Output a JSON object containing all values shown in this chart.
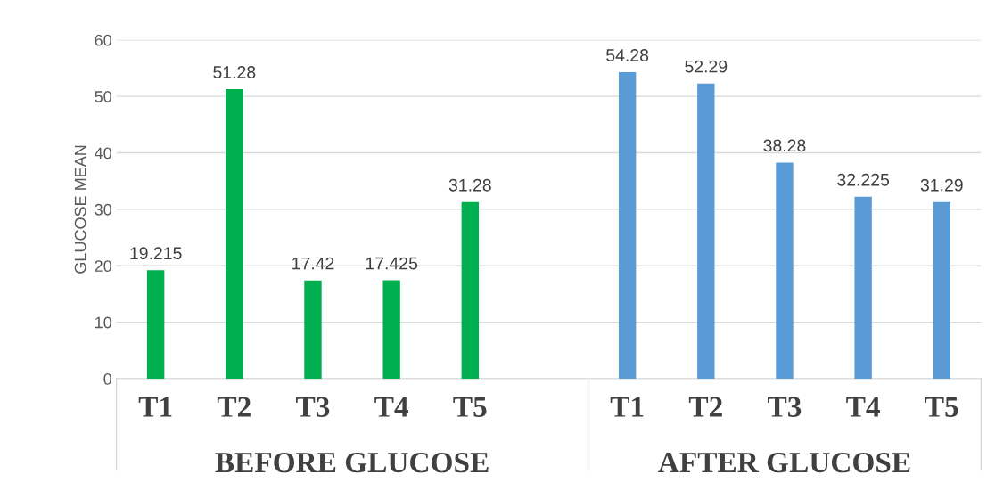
{
  "chart_data": {
    "type": "bar",
    "categories": [
      "T1",
      "T2",
      "T3",
      "T4",
      "T5",
      null,
      "T1",
      "T2",
      "T3",
      "T4",
      "T5"
    ],
    "values": [
      19.215,
      51.28,
      17.42,
      17.425,
      31.28,
      null,
      54.28,
      52.29,
      38.28,
      32.225,
      31.29
    ],
    "colors": [
      "#00b050",
      "#00b050",
      "#00b050",
      "#00b050",
      "#00b050",
      null,
      "#5b9bd5",
      "#5b9bd5",
      "#5b9bd5",
      "#5b9bd5",
      "#5b9bd5"
    ],
    "ylabel": "GLUCOSE MEAN",
    "ylim": [
      0,
      60
    ],
    "yticks": [
      0,
      10,
      20,
      30,
      40,
      50,
      60
    ],
    "grid": "y",
    "data_labels": true,
    "annotations": [
      "BEFORE GLUCOSE",
      "AFTER GLUCOSE"
    ]
  }
}
